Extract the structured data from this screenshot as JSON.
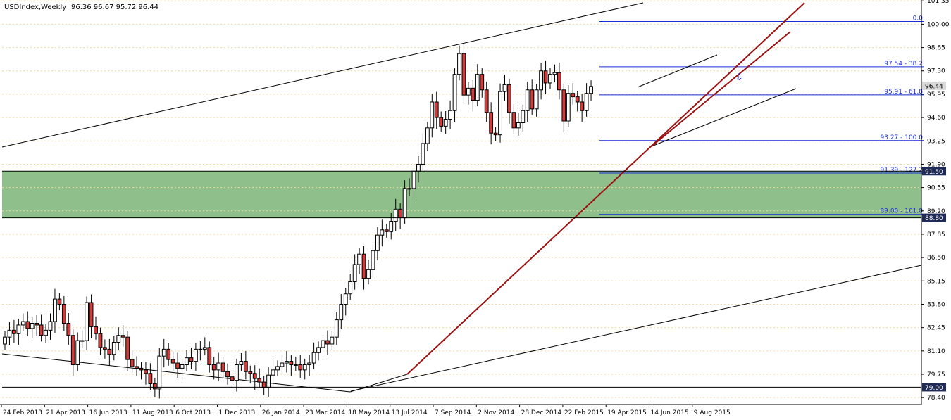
{
  "chart_data": {
    "type": "candlestick",
    "symbol_label": "USDIndex,Weekly",
    "ohlc_label": "96.36 96.67 95.72 96.44",
    "y_range": [
      78.0,
      101.4
    ],
    "y_ticks": [
      "101.35",
      "100.00",
      "98.65",
      "97.30",
      "95.95",
      "94.60",
      "93.25",
      "91.90",
      "90.55",
      "89.20",
      "87.85",
      "86.50",
      "85.15",
      "83.80",
      "82.45",
      "81.10",
      "79.75",
      "78.40"
    ],
    "x_labels": [
      "24 Feb 2013",
      "21 Apr 2013",
      "16 Jun 2013",
      "11 Aug 2013",
      "6 Oct 2013",
      "1 Dec 2013",
      "26 Jan 2014",
      "23 Mar 2014",
      "18 May 2014",
      "13 Jul 2014",
      "7 Sep 2014",
      "2 Nov 2014",
      "28 Dec 2014",
      "22 Feb 2015",
      "19 Apr 2015",
      "14 Jun 2015",
      "9 Aug 2015"
    ],
    "start_date": "2013-02-10",
    "candle_closes": [
      81.9,
      82.3,
      82.1,
      82.6,
      82.8,
      82.4,
      82.7,
      82.6,
      82.0,
      82.3,
      82.8,
      84.1,
      83.8,
      82.7,
      82.0,
      80.3,
      81.7,
      81.7,
      83.9,
      82.5,
      82.1,
      81.3,
      81.2,
      80.9,
      81.6,
      82.0,
      81.9,
      80.6,
      80.2,
      80.1,
      80.0,
      79.8,
      79.2,
      78.9,
      80.8,
      81.2,
      80.6,
      80.4,
      80.1,
      80.3,
      80.7,
      80.5,
      81.2,
      81.2,
      81.3,
      80.3,
      80.0,
      80.4,
      79.9,
      79.6,
      79.4,
      80.3,
      80.5,
      79.9,
      79.8,
      79.5,
      79.3,
      79.0,
      79.7,
      80.0,
      80.2,
      80.4,
      80.5,
      80.3,
      80.3,
      80.0,
      80.3,
      80.4,
      81.0,
      81.3,
      81.7,
      81.5,
      81.9,
      82.9,
      83.8,
      84.4,
      85.1,
      86.1,
      86.7,
      85.3,
      85.8,
      86.9,
      87.8,
      88.1,
      88.0,
      88.6,
      89.3,
      88.8,
      90.5,
      90.5,
      91.5,
      91.9,
      93.1,
      94.0,
      95.5,
      94.6,
      94.1,
      94.5,
      95.0,
      97.1,
      98.3,
      95.9,
      96.3,
      95.6,
      97.1,
      96.2,
      94.9,
      93.7,
      93.6,
      96.1,
      96.5,
      94.9,
      94.0,
      94.3,
      95.0,
      96.2,
      95.1,
      96.2,
      97.3,
      96.6,
      97.1,
      97.2,
      96.2,
      94.4,
      96.0,
      95.8,
      95.5,
      95.0,
      96.0,
      96.4
    ]
  },
  "levels": {
    "lines": [
      {
        "name": "fib-0",
        "label": "0.0",
        "value": 100.16
      },
      {
        "name": "fib-38",
        "label": "97.54 - 38.2",
        "value": 97.54
      },
      {
        "name": "fib-61",
        "label": "95.91 - 61.8",
        "value": 95.91
      },
      {
        "name": "fib-100",
        "label": "93.27 - 100.0",
        "value": 93.27
      },
      {
        "name": "fib-127",
        "label": "91.39 - 127.2",
        "value": 91.39
      },
      {
        "name": "fib-161",
        "label": "89.00 - 161.8",
        "value": 89.0
      }
    ],
    "tags": [
      {
        "name": "price-tag-current",
        "label": "96.44",
        "value": 96.44,
        "bg": "#d8d8d8",
        "fg": "#000000"
      },
      {
        "name": "price-tag-zone-top",
        "label": "91.50",
        "value": 91.5,
        "bg": "#1f2a57",
        "fg": "#ffffff"
      },
      {
        "name": "price-tag-zone-bottom",
        "label": "88.80",
        "value": 88.8,
        "bg": "#1f2a57",
        "fg": "#ffffff"
      },
      {
        "name": "price-tag-support",
        "label": "79.00",
        "value": 79.0,
        "bg": "#1f2a57",
        "fg": "#ffffff"
      }
    ]
  },
  "zone": {
    "top": 91.5,
    "bottom": 88.8,
    "color": "#8fbf8a"
  },
  "colors": {
    "bull": "#ffffff",
    "bear": "#d33a3a",
    "trend": "#9a1212",
    "fib": "#1a2bd6",
    "grid": "#f3d9a0"
  }
}
